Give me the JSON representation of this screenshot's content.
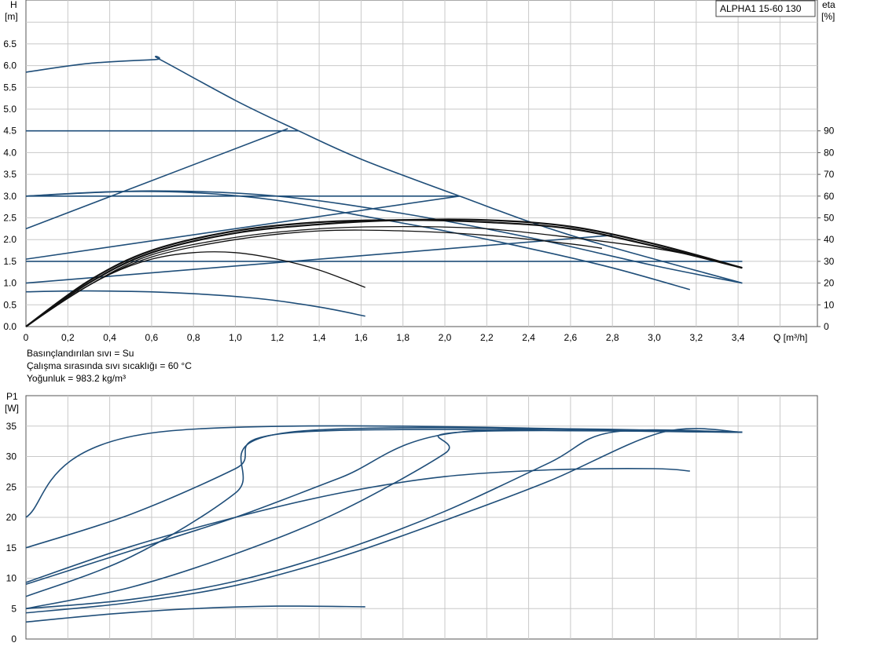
{
  "chart_data": [
    {
      "type": "line",
      "title": "ALPHA1 15-60 130",
      "ylabel_text": "H",
      "ylabel_unit": "[m]",
      "y2label_text": "eta",
      "y2label_unit": "[%]",
      "xlabel": "Q [m³/h]",
      "xlim": [
        0,
        3.8
      ],
      "ylim": [
        0,
        7.5
      ],
      "y2lim": [
        0,
        150
      ],
      "x_ticks": [
        "0",
        "0,2",
        "0,4",
        "0,6",
        "0,8",
        "1,0",
        "1,2",
        "1,4",
        "1,6",
        "1,8",
        "2,0",
        "2,2",
        "2,4",
        "2,6",
        "2,8",
        "3,0",
        "3,2",
        "3,4"
      ],
      "y_ticks": [
        "0.0",
        "0.5",
        "1.0",
        "1.5",
        "2.0",
        "2.5",
        "3.0",
        "3.5",
        "4.0",
        "4.5",
        "5.0",
        "5.5",
        "6.0",
        "6.5"
      ],
      "y2_ticks": [
        "0",
        "10",
        "20",
        "30",
        "40",
        "50",
        "60",
        "70",
        "80",
        "90"
      ],
      "grid": true,
      "notes": [
        "Basınçlandırılan sıvı = Su",
        "Çalışma sırasında sıvı sıcaklığı = 60 °C",
        "Yoğunluk = 983.2 kg/m³"
      ],
      "head_series": [
        {
          "x": [
            0,
            0.3,
            0.62,
            0.64,
            1.0,
            1.28,
            1.6,
            2.07,
            2.6,
            3.42
          ],
          "y": [
            5.85,
            6.05,
            6.14,
            6.14,
            5.2,
            4.55,
            3.85,
            3.0,
            2.1,
            1.0
          ]
        },
        {
          "x": [
            0,
            1.3
          ],
          "y": [
            4.5,
            4.5
          ]
        },
        {
          "x": [
            0,
            1.25
          ],
          "y": [
            2.25,
            4.55
          ]
        },
        {
          "x": [
            0,
            2.07
          ],
          "y": [
            3.0,
            3.0
          ]
        },
        {
          "x": [
            0,
            2.07
          ],
          "y": [
            1.55,
            3.0
          ]
        },
        {
          "x": [
            0,
            3.42
          ],
          "y": [
            1.5,
            1.5
          ]
        },
        {
          "x": [
            0,
            2.8
          ],
          "y": [
            1.0,
            2.1
          ]
        },
        {
          "x": [
            0,
            0.6,
            1.2,
            1.8,
            2.4,
            3.0,
            3.42
          ],
          "y": [
            3.0,
            3.12,
            3.0,
            2.6,
            2.05,
            1.4,
            1.0
          ]
        },
        {
          "x": [
            0,
            0.4,
            0.8,
            1.2,
            1.6,
            2.0,
            2.4,
            2.8,
            3.17
          ],
          "y": [
            3.0,
            3.1,
            3.08,
            2.9,
            2.55,
            2.2,
            1.8,
            1.35,
            0.85
          ]
        },
        {
          "x": [
            0,
            0.3,
            0.7,
            1.1,
            1.4,
            1.62
          ],
          "y": [
            0.8,
            0.82,
            0.78,
            0.65,
            0.45,
            0.24
          ]
        }
      ],
      "eta_series": [
        {
          "x": [
            0,
            0.2,
            0.4,
            0.6,
            0.8,
            1.0,
            1.2,
            1.4,
            1.62
          ],
          "y": [
            0,
            13,
            24,
            31,
            34,
            34,
            31,
            26,
            18
          ]
        },
        {
          "x": [
            0,
            0.3,
            0.6,
            1.0,
            1.4,
            1.8,
            2.2,
            2.6,
            2.75
          ],
          "y": [
            0,
            19,
            32,
            40,
            44,
            44,
            42,
            38,
            36
          ]
        },
        {
          "x": [
            0,
            0.3,
            0.6,
            1.0,
            1.4,
            1.8,
            2.2,
            2.6,
            3.0,
            3.17
          ],
          "y": [
            0,
            19,
            33,
            41,
            45,
            46,
            45,
            41,
            36,
            33
          ]
        },
        {
          "x": [
            0,
            0.3,
            0.6,
            1.0,
            1.4,
            1.8,
            2.2,
            2.6,
            3.0,
            3.42
          ],
          "y": [
            0,
            20,
            34,
            43,
            47,
            49,
            49,
            46,
            38,
            27
          ]
        },
        {
          "x": [
            0,
            0.3,
            0.6,
            1.0,
            1.4,
            1.8,
            2.2,
            2.6,
            3.0,
            3.42
          ],
          "y": [
            0,
            21,
            35,
            44,
            48,
            49,
            48,
            45,
            37,
            27
          ]
        }
      ]
    },
    {
      "type": "line",
      "ylabel_text": "P1",
      "ylabel_unit": "[W]",
      "xlim": [
        0,
        3.8
      ],
      "ylim": [
        0,
        38
      ],
      "y_ticks": [
        "0",
        "5",
        "10",
        "15",
        "20",
        "25",
        "30",
        "35"
      ],
      "grid": true,
      "series": [
        {
          "x": [
            0,
            0.63,
            3.42
          ],
          "y": [
            20,
            34,
            34
          ]
        },
        {
          "x": [
            0,
            0.5,
            1.0,
            1.3,
            3.42
          ],
          "y": [
            15,
            20.5,
            28,
            34,
            34
          ]
        },
        {
          "x": [
            0,
            0.5,
            1.0,
            1.26,
            3.42
          ],
          "y": [
            7,
            13.5,
            24,
            34,
            34
          ]
        },
        {
          "x": [
            0,
            0.5,
            1.0,
            1.5,
            2.07,
            3.42
          ],
          "y": [
            9,
            14.5,
            20,
            26.5,
            34,
            34
          ]
        },
        {
          "x": [
            0,
            0.5,
            1.0,
            1.5,
            2.0,
            2.07,
            3.42
          ],
          "y": [
            5,
            8.5,
            14,
            21,
            30.5,
            34,
            34
          ]
        },
        {
          "x": [
            0,
            0.5,
            1.0,
            1.5,
            2.0,
            2.5,
            2.8,
            3.42
          ],
          "y": [
            5,
            6.5,
            9.5,
            14.5,
            21,
            29,
            34,
            34
          ]
        },
        {
          "x": [
            0,
            0.5,
            1.0,
            1.5,
            2.0,
            2.5,
            3.04,
            3.42
          ],
          "y": [
            4.3,
            6,
            8.8,
            13.5,
            19.5,
            26,
            34,
            34
          ]
        },
        {
          "x": [
            0,
            0.5,
            1.0,
            1.5,
            2.0,
            2.5,
            3.0,
            3.17
          ],
          "y": [
            9.3,
            15.2,
            20,
            24,
            26.7,
            27.8,
            28,
            27.6
          ]
        },
        {
          "x": [
            0,
            0.4,
            0.8,
            1.2,
            1.62
          ],
          "y": [
            2.8,
            4.1,
            5.0,
            5.4,
            5.3
          ]
        }
      ]
    }
  ],
  "colors": {
    "head_curve": "#1f4e79",
    "eta_curve": "#111111",
    "grid": "#c8c8c8",
    "frame": "#555555"
  }
}
